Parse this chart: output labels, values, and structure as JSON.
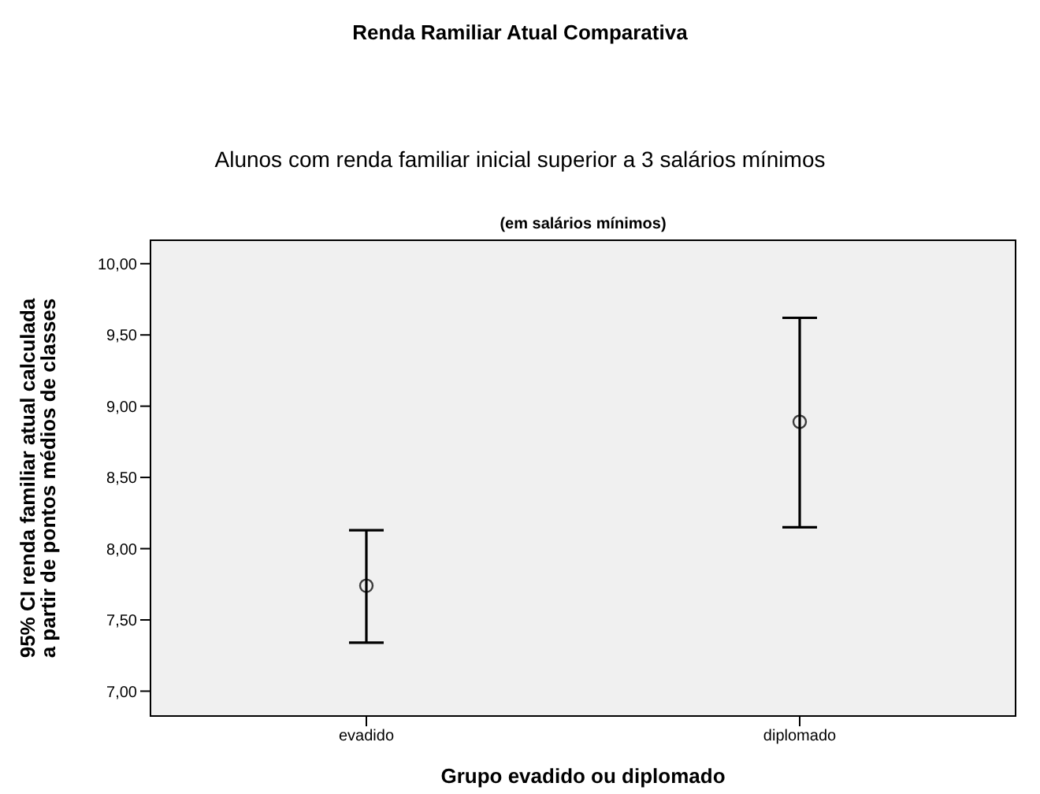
{
  "chart_data": {
    "type": "scatter",
    "title": "Renda Ramiliar Atual Comparativa",
    "subtitle": "Alunos com renda familiar inicial superior a 3 salários mínimos",
    "annotations": [
      "(em salários mínimos)"
    ],
    "xlabel": "Grupo evadido ou diplomado",
    "ylabel": "95% CI renda familiar atual calculada a partir de pontos médios de classes",
    "categories": [
      "evadido",
      "diplomado"
    ],
    "series": [
      {
        "color": "#000000",
        "values": [
          7.74,
          8.89
        ],
        "errors": [
          [
            7.34,
            8.13
          ],
          [
            8.15,
            9.62
          ]
        ]
      }
    ],
    "ylim": [
      6.82,
      10.17
    ],
    "yticks": [
      {
        "value": 7,
        "label": "7,00"
      },
      {
        "value": 7.5,
        "label": "7,50"
      },
      {
        "value": 8,
        "label": "8,00"
      },
      {
        "value": 8.5,
        "label": "8,50"
      },
      {
        "value": 9,
        "label": "9,00"
      },
      {
        "value": 9.5,
        "label": "9,50"
      },
      {
        "value": 10,
        "label": "10,00"
      }
    ],
    "marker": "circle"
  }
}
